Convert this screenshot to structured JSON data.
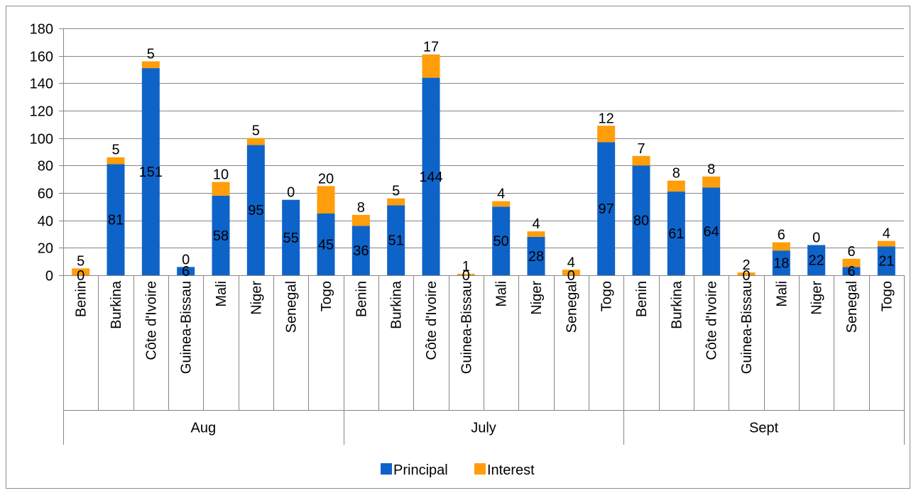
{
  "colors": {
    "principal": "#0e63c9",
    "interest": "#ff9d0a"
  },
  "chart_data": {
    "type": "bar",
    "stacked": true,
    "ylim": [
      0,
      180
    ],
    "yticks": [
      0,
      20,
      40,
      60,
      80,
      100,
      120,
      140,
      160,
      180
    ],
    "grid": true,
    "legend_position": "bottom",
    "groups": [
      {
        "name": "Aug",
        "categories": [
          "Benin",
          "Burkina",
          "Côte d'Ivoire",
          "Guinea-Bissau",
          "Mali",
          "Niger",
          "Senegal",
          "Togo"
        ],
        "principal": [
          0,
          81,
          151,
          6,
          58,
          95,
          55,
          45
        ],
        "interest": [
          5,
          5,
          5,
          0,
          10,
          5,
          0,
          20
        ]
      },
      {
        "name": "July",
        "categories": [
          "Benin",
          "Burkina",
          "Côte d'Ivoire",
          "Guinea-Bissau",
          "Mali",
          "Niger",
          "Senegal",
          "Togo"
        ],
        "principal": [
          36,
          51,
          144,
          0,
          50,
          28,
          0,
          97
        ],
        "interest": [
          8,
          5,
          17,
          1,
          4,
          4,
          4,
          12
        ]
      },
      {
        "name": "Sept",
        "categories": [
          "Benin",
          "Burkina",
          "Côte d'Ivoire",
          "Guinea-Bissau",
          "Mali",
          "Niger",
          "Senegal",
          "Togo"
        ],
        "principal": [
          80,
          61,
          64,
          0,
          18,
          22,
          6,
          21
        ],
        "interest": [
          7,
          8,
          8,
          2,
          6,
          0,
          6,
          4
        ]
      }
    ],
    "series": [
      {
        "name": "Principal",
        "color_key": "principal"
      },
      {
        "name": "Interest",
        "color_key": "interest"
      }
    ]
  }
}
